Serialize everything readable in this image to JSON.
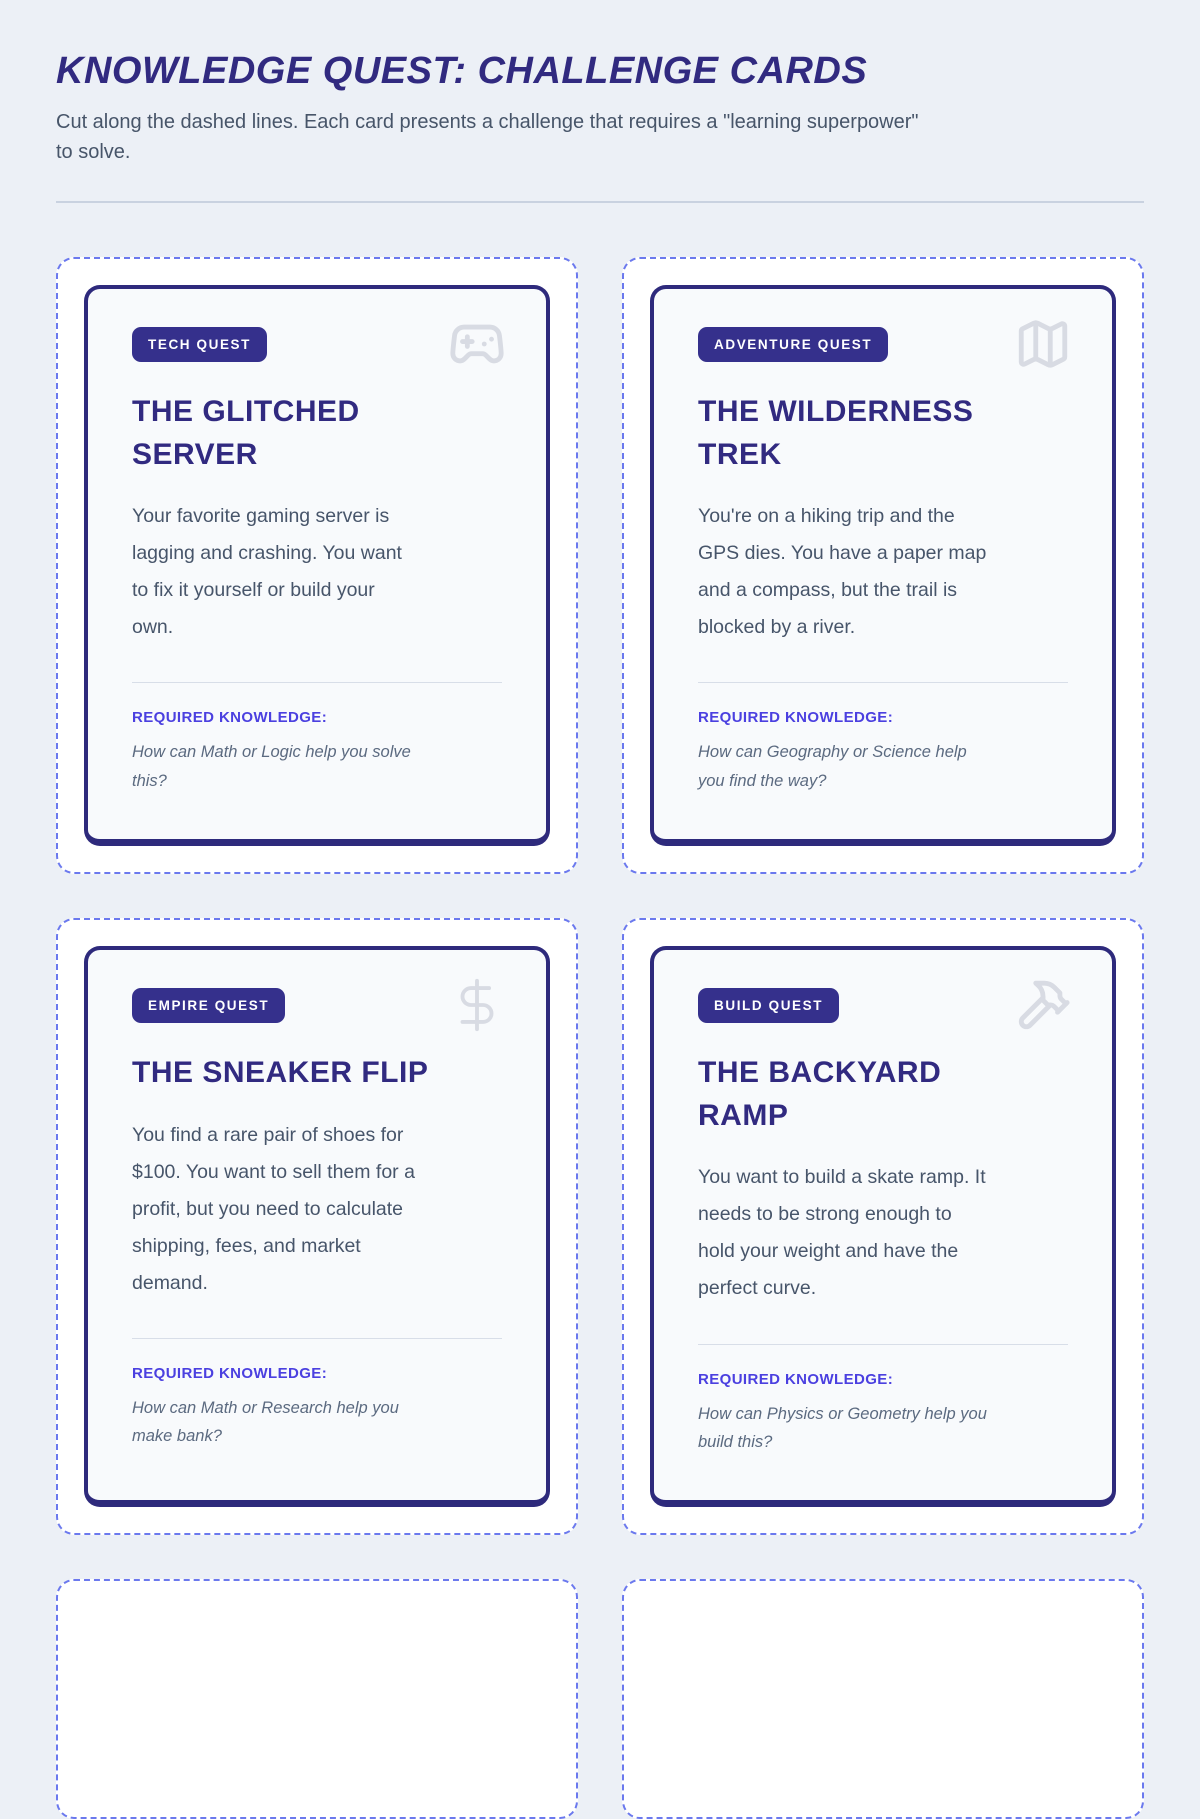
{
  "header": {
    "title": "KNOWLEDGE QUEST: CHALLENGE CARDS",
    "subtitle": "Cut along the dashed lines. Each card presents a challenge that requires a \"learning superpower\"\nto solve."
  },
  "grid": {
    "partial_next_row_cards": 2
  },
  "cards": [
    {
      "badge": "TECH QUEST",
      "icon": "gamepad-icon",
      "title": "THE GLITCHED\nSERVER",
      "body": "Your favorite gaming server is\nlagging and crashing. You want\nto fix it yourself or build your\nown.",
      "knowledge_label": "REQUIRED KNOWLEDGE:",
      "question": "How can Math or Logic help you solve\nthis?"
    },
    {
      "badge": "ADVENTURE QUEST",
      "icon": "map-icon",
      "title": "THE WILDERNESS\nTREK",
      "body": "You're on a hiking trip and the\nGPS dies. You have a paper map\nand a compass, but the trail is\nblocked by a river.",
      "knowledge_label": "REQUIRED KNOWLEDGE:",
      "question": "How can Geography or Science help\nyou find the way?"
    },
    {
      "badge": "EMPIRE QUEST",
      "icon": "dollar-sign-icon",
      "title": "THE SNEAKER FLIP",
      "body": "You find a rare pair of shoes for\n$100. You want to sell them for a\nprofit, but you need to calculate\nshipping, fees, and market\ndemand.",
      "knowledge_label": "REQUIRED KNOWLEDGE:",
      "question": "How can Math or Research help you\nmake bank?"
    },
    {
      "badge": "BUILD QUEST",
      "icon": "hammer-icon",
      "title": "THE BACKYARD\nRAMP",
      "body": "You want to build a skate ramp. It\nneeds to be strong enough to\nhold your weight and have the\nperfect curve.",
      "knowledge_label": "REQUIRED KNOWLEDGE:",
      "question": "How can Physics or Geometry help you\nbuild this?"
    }
  ],
  "colors": {
    "page_background": "#ecf0f6",
    "cut_line_background": "#ffffff",
    "cut_line_dash": "#6b79ee",
    "card_background": "#f8fafc",
    "card_border": "#2e2a7c",
    "badge_background": "#35308c",
    "badge_text": "#ffffff",
    "title_text": "#312a80",
    "body_text": "#47556a",
    "knowledge_label_text": "#4b40e0",
    "question_text": "#5b6a80",
    "icon_gray": "#d8dbe3"
  }
}
